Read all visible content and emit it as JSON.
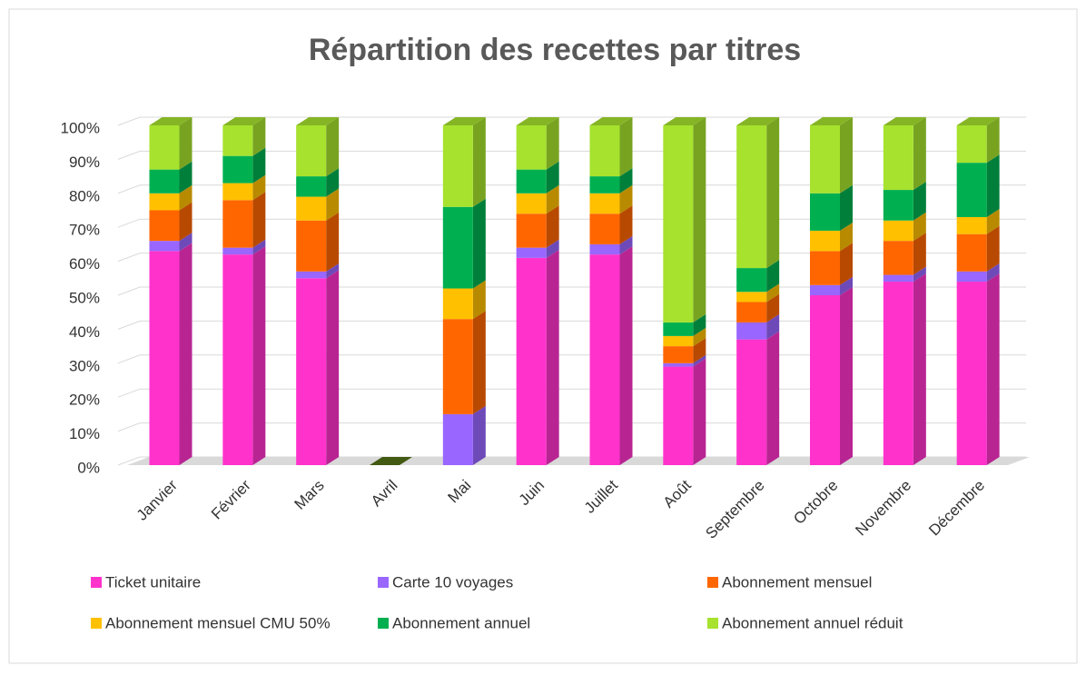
{
  "chart_data": {
    "type": "bar",
    "stacked": true,
    "title": "Répartition des recettes par titres",
    "categories": [
      "Janvier",
      "Février",
      "Mars",
      "Avril",
      "Mai",
      "Juin",
      "Juillet",
      "Août",
      "Septembre",
      "Octobre",
      "Novembre",
      "Décembre"
    ],
    "series": [
      {
        "name": "Ticket unitaire",
        "color": "#ff33cc",
        "values": [
          63,
          62,
          55,
          0,
          0,
          61,
          62,
          29,
          37,
          50,
          54,
          54
        ]
      },
      {
        "name": "Carte 10 voyages",
        "color": "#9966ff",
        "values": [
          3,
          2,
          2,
          0,
          15,
          3,
          3,
          1,
          5,
          3,
          2,
          3
        ]
      },
      {
        "name": "Abonnement mensuel",
        "color": "#ff6600",
        "values": [
          9,
          14,
          15,
          0,
          28,
          10,
          9,
          5,
          6,
          10,
          10,
          11
        ]
      },
      {
        "name": "Abonnement mensuel CMU 50%",
        "color": "#ffc000",
        "values": [
          5,
          5,
          7,
          0,
          9,
          6,
          6,
          3,
          3,
          6,
          6,
          5
        ]
      },
      {
        "name": "Abonnement annuel",
        "color": "#00b050",
        "values": [
          7,
          8,
          6,
          0,
          24,
          7,
          5,
          4,
          7,
          11,
          9,
          16
        ]
      },
      {
        "name": "Abonnement annuel réduit",
        "color": "#a6e22e",
        "values": [
          13,
          9,
          15,
          0,
          24,
          13,
          15,
          58,
          42,
          20,
          19,
          11
        ]
      }
    ],
    "ylim": [
      0,
      100
    ],
    "yticks": [
      {
        "value": 0,
        "label": "0%"
      },
      {
        "value": 10,
        "label": "10%"
      },
      {
        "value": 20,
        "label": "20%"
      },
      {
        "value": 30,
        "label": "30%"
      },
      {
        "value": 40,
        "label": "40%"
      },
      {
        "value": 50,
        "label": "50%"
      },
      {
        "value": 60,
        "label": "60%"
      },
      {
        "value": 70,
        "label": "70%"
      },
      {
        "value": 80,
        "label": "80%"
      },
      {
        "value": 90,
        "label": "90%"
      },
      {
        "value": 100,
        "label": "100%"
      }
    ],
    "grid": true
  }
}
